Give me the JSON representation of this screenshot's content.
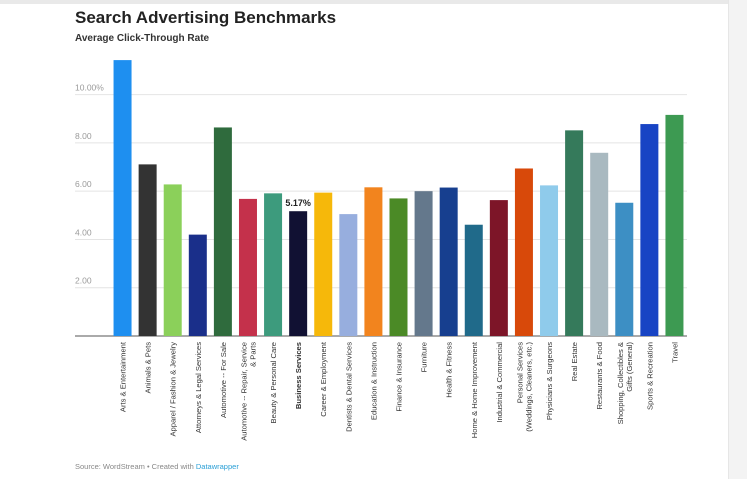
{
  "header": {
    "title": "Search Advertising Benchmarks",
    "subtitle": "Average Click-Through Rate"
  },
  "footer": {
    "source_text": "Source: WordStream • Created with ",
    "link_text": "Datawrapper"
  },
  "chart_data": {
    "type": "bar",
    "title": "Search Advertising Benchmarks",
    "subtitle": "Average Click-Through Rate",
    "xlabel": "",
    "ylabel": "",
    "ylim": [
      0,
      11.6
    ],
    "grid": true,
    "yticks": [
      {
        "value": 2,
        "label": "2.00"
      },
      {
        "value": 4,
        "label": "4.00"
      },
      {
        "value": 6,
        "label": "6.00"
      },
      {
        "value": 8,
        "label": "8.00"
      },
      {
        "value": 10,
        "label": "10.00%"
      }
    ],
    "categories": [
      "Arts & Entertainment",
      "Animals & Pets",
      "Apparel / Fashion & Jewelry",
      "Attorneys & Legal Services",
      "Automotive -- For Sale",
      [
        "Automotive -- Repair, Service",
        "& Parts"
      ],
      "Beauty & Personal Care",
      "Business Services",
      "Career & Employment",
      "Dentists & Dental Services",
      "Education & Instruction",
      "Finance & Insurance",
      "Furniture",
      "Health & Fitness",
      "Home & Home Improvement",
      "Industrial & Commercial",
      [
        "Personal Services",
        "(Weddings, Cleaners, etc.)"
      ],
      "Physicians & Surgeons",
      "Real Estate",
      "Restaurants & Food",
      [
        "Shopping, Collectibles &",
        "Gifts (General)"
      ],
      "Sports & Recreation",
      "Travel"
    ],
    "values": [
      11.43,
      7.11,
      6.28,
      4.2,
      8.64,
      5.68,
      5.91,
      5.17,
      5.94,
      5.05,
      6.16,
      5.7,
      6.0,
      6.15,
      4.61,
      5.63,
      6.94,
      6.24,
      8.52,
      7.59,
      5.52,
      8.78,
      9.16
    ],
    "colors": [
      "#1e8ff0",
      "#333333",
      "#8bd05a",
      "#1a2f8a",
      "#2f6b3d",
      "#c4314b",
      "#3d9b7d",
      "#111133",
      "#f6b80a",
      "#97aede",
      "#f2841e",
      "#4b8a26",
      "#64788c",
      "#173f8f",
      "#206a8a",
      "#7d1528",
      "#d8490a",
      "#8fcbeb",
      "#357a5b",
      "#a9b9c0",
      "#3d8fc4",
      "#1844c4",
      "#3d9a52"
    ],
    "highlight_index": 7,
    "value_labels": [
      {
        "index": 7,
        "text": "5.17%"
      }
    ]
  }
}
